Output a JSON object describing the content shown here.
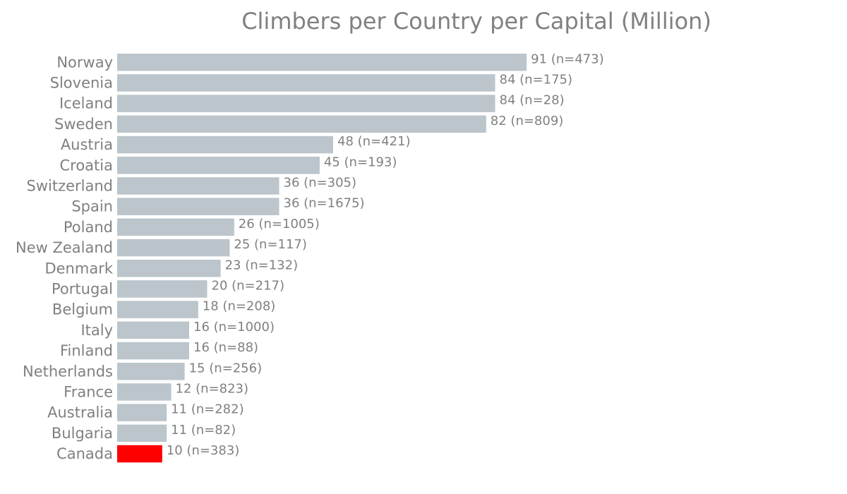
{
  "chart_data": {
    "type": "bar",
    "orientation": "horizontal",
    "title": "Climbers per Country per Capital (Million)",
    "xlabel": "",
    "ylabel": "",
    "grid": false,
    "legend": "none",
    "colors": {
      "bar": "#bbc5cb",
      "highlight": "#ff0000",
      "text": "#808080"
    },
    "categories": [
      "Norway",
      "Slovenia",
      "Iceland",
      "Sweden",
      "Austria",
      "Croatia",
      "Switzerland",
      "Spain",
      "Poland",
      "New Zealand",
      "Denmark",
      "Portugal",
      "Belgium",
      "Italy",
      "Finland",
      "Netherlands",
      "France",
      "Australia",
      "Bulgaria",
      "Canada"
    ],
    "values": [
      91,
      84,
      84,
      82,
      48,
      45,
      36,
      36,
      26,
      25,
      23,
      20,
      18,
      16,
      16,
      15,
      12,
      11,
      11,
      10
    ],
    "labels": [
      "91 (n=473)",
      "84 (n=175)",
      "84 (n=28)",
      "82 (n=809)",
      "48 (n=421)",
      "45 (n=193)",
      "36 (n=305)",
      "36 (n=1675)",
      "26 (n=1005)",
      "25 (n=117)",
      "23 (n=132)",
      "20 (n=217)",
      "18 (n=208)",
      "16 (n=1000)",
      "16 (n=88)",
      "15 (n=256)",
      "12 (n=823)",
      "11 (n=282)",
      "11 (n=82)",
      "10 (n=383)"
    ],
    "highlight": [
      "Canada"
    ],
    "xlim": [
      0,
      160
    ]
  }
}
